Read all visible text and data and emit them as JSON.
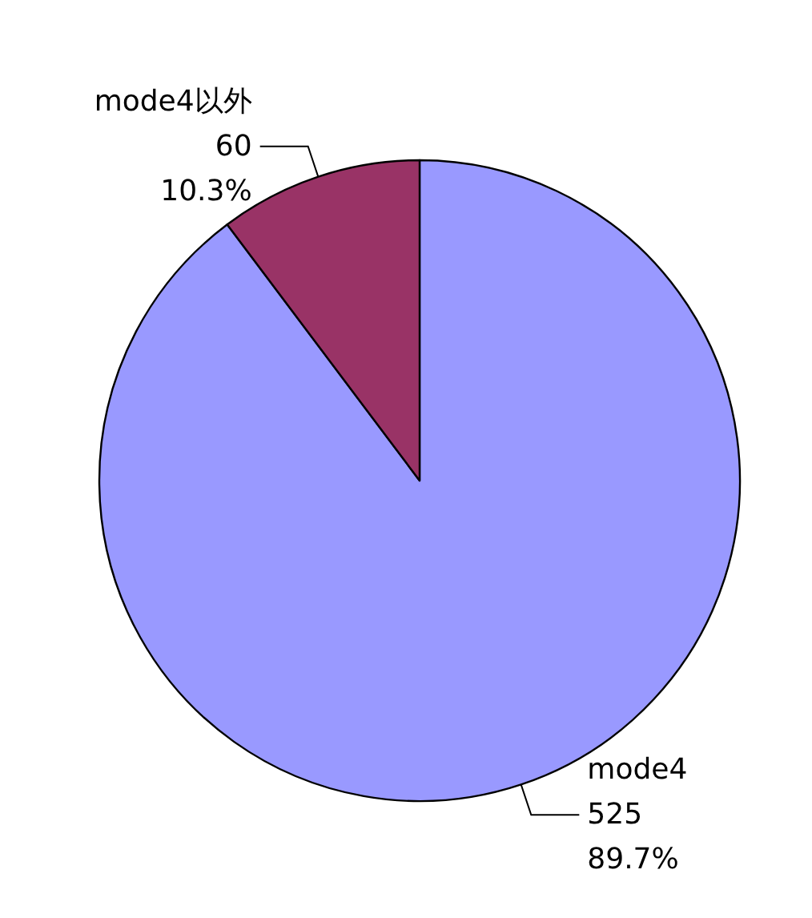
{
  "chart_data": {
    "type": "pie",
    "categories": [
      "mode4",
      "mode4以外"
    ],
    "values": [
      525,
      60
    ],
    "value_labels": [
      "525\n89.7%",
      "60\n10.3%"
    ],
    "colors": [
      "#9999ff",
      "#993366"
    ],
    "legend": false
  }
}
